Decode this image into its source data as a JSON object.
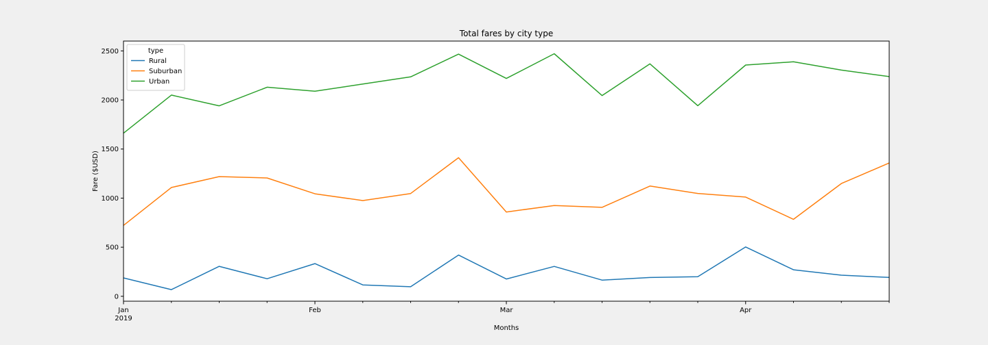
{
  "chart_data": {
    "type": "line",
    "title": "Total fares by city type",
    "xlabel": "Months",
    "ylabel": "Fare ($USD)",
    "x": [
      "2019-01-06",
      "2019-01-13",
      "2019-01-20",
      "2019-01-27",
      "2019-02-03",
      "2019-02-10",
      "2019-02-17",
      "2019-02-24",
      "2019-03-03",
      "2019-03-10",
      "2019-03-17",
      "2019-03-24",
      "2019-03-31",
      "2019-04-07",
      "2019-04-14",
      "2019-04-21",
      "2019-04-28"
    ],
    "xlim": [
      "2019-01-06",
      "2019-04-28"
    ],
    "x_ticks": [
      {
        "date": "2019-01-06",
        "label": "Jan",
        "sublabel": "2019"
      },
      {
        "date": "2019-02-03",
        "label": "Feb",
        "sublabel": ""
      },
      {
        "date": "2019-03-03",
        "label": "Mar",
        "sublabel": ""
      },
      {
        "date": "2019-04-07",
        "label": "Apr",
        "sublabel": ""
      }
    ],
    "ylim": [
      -50,
      2600
    ],
    "y_ticks": [
      0,
      500,
      1000,
      1500,
      2000,
      2500
    ],
    "grid": false,
    "legend": {
      "title": "type",
      "placement": "upper-left"
    },
    "series": [
      {
        "name": "Rural",
        "color": "#1f77b4",
        "values": [
          187,
          68,
          305,
          179,
          333,
          116,
          97,
          420,
          176,
          304,
          165,
          191,
          200,
          502,
          270,
          215,
          192
        ]
      },
      {
        "name": "Suburban",
        "color": "#ff7f0e",
        "values": [
          722,
          1108,
          1219,
          1205,
          1044,
          975,
          1047,
          1412,
          859,
          925,
          906,
          1123,
          1048,
          1011,
          784,
          1149,
          1358
        ]
      },
      {
        "name": "Urban",
        "color": "#2ca02c",
        "values": [
          1661,
          2050,
          1940,
          2130,
          2089,
          2162,
          2235,
          2467,
          2219,
          2471,
          2045,
          2368,
          1942,
          2356,
          2389,
          2304,
          2238
        ]
      }
    ]
  }
}
